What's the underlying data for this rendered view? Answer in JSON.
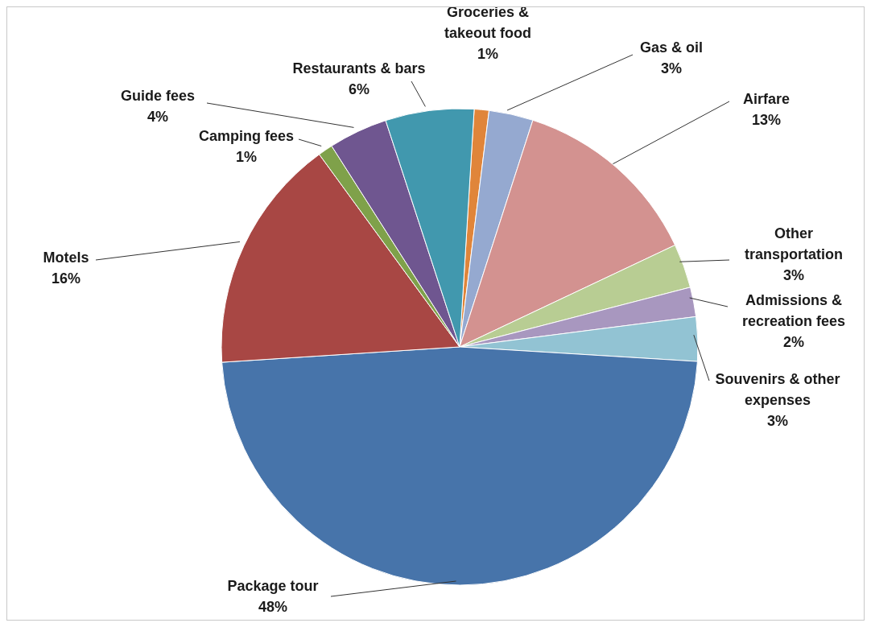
{
  "chart_data": {
    "type": "pie",
    "categories": [
      "Groceries & takeout food",
      "Gas & oil",
      "Airfare",
      "Other transportation",
      "Admissions & recreation fees",
      "Souvenirs & other expenses",
      "Package tour",
      "Motels",
      "Camping fees",
      "Guide fees",
      "Restaurants & bars"
    ],
    "values": [
      1,
      3,
      13,
      3,
      2,
      3,
      48,
      16,
      1,
      4,
      6
    ],
    "value_labels": [
      "1%",
      "3%",
      "13%",
      "3%",
      "2%",
      "3%",
      "48%",
      "16%",
      "1%",
      "4%",
      "6%"
    ],
    "colors": [
      "#e0853a",
      "#95a9d0",
      "#d39290",
      "#b8cd93",
      "#a897bf",
      "#92c3d3",
      "#4774aa",
      "#a84744",
      "#7fa14a",
      "#6f5690",
      "#4198ae"
    ]
  }
}
